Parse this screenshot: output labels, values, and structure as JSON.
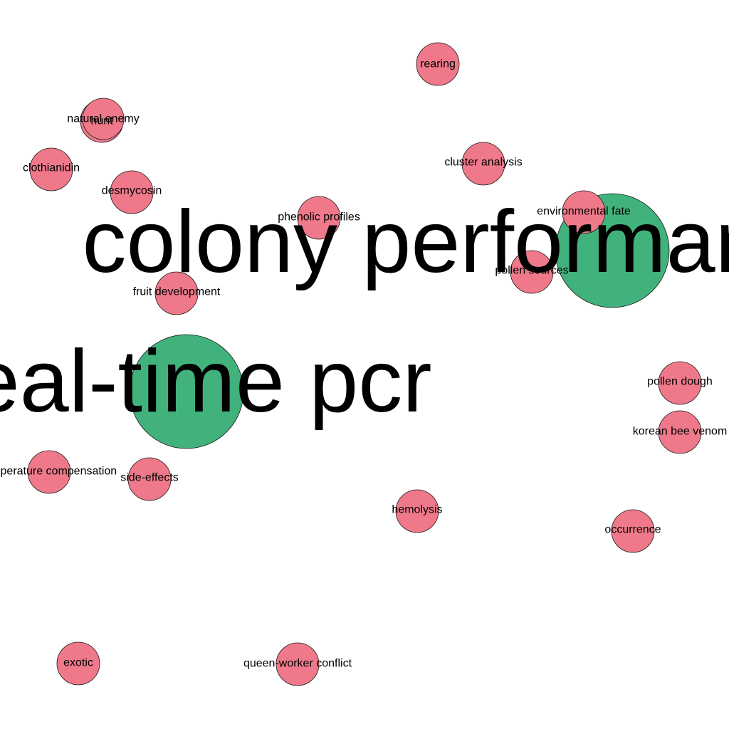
{
  "network": {
    "colors": {
      "small_node": "#ef798a",
      "big_node": "#41b27b",
      "outline": "#1a1a1a",
      "background": "#ffffff"
    },
    "big_nodes": [
      {
        "id": "colony-performance",
        "label": "colony performance"
      },
      {
        "id": "real-time-pcr",
        "label": "real-time pcr"
      }
    ],
    "small_nodes": [
      {
        "id": "rearing",
        "label": "rearing"
      },
      {
        "id": "hunt",
        "label": "hunt"
      },
      {
        "id": "natural-enemy",
        "label": "natural enemy"
      },
      {
        "id": "clothianidin",
        "label": "clothianidin"
      },
      {
        "id": "desmycosin",
        "label": "desmycosin"
      },
      {
        "id": "cluster-analysis",
        "label": "cluster analysis"
      },
      {
        "id": "phenolic-profiles",
        "label": "phenolic profiles"
      },
      {
        "id": "environmental-fate",
        "label": "environmental fate"
      },
      {
        "id": "pollen-sources",
        "label": "pollen sources"
      },
      {
        "id": "fruit-development",
        "label": "fruit development"
      },
      {
        "id": "pollen-dough",
        "label": "pollen dough"
      },
      {
        "id": "korean-bee-venom",
        "label": "korean bee venom"
      },
      {
        "id": "temperature-compensation",
        "label": "temperature compensation"
      },
      {
        "id": "side-effects",
        "label": "side-effects"
      },
      {
        "id": "hemolysis",
        "label": "hemolysis"
      },
      {
        "id": "occurrence",
        "label": "occurrence"
      },
      {
        "id": "exotic",
        "label": "exotic"
      },
      {
        "id": "queen-worker-conflict",
        "label": "queen-worker conflict"
      }
    ]
  }
}
